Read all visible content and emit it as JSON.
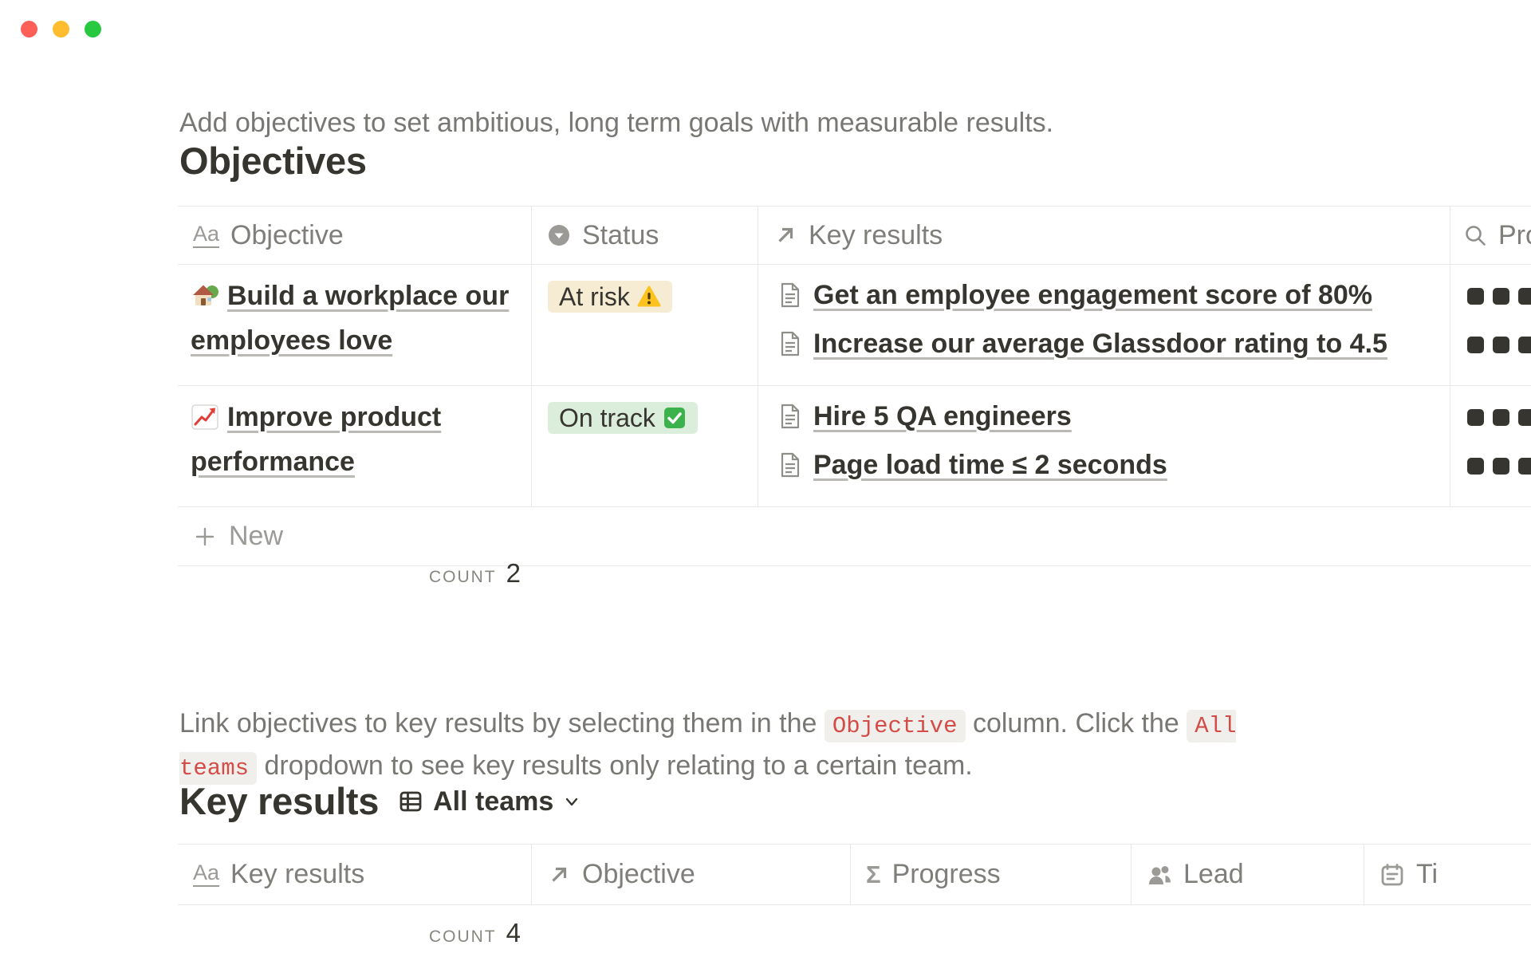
{
  "colors": {
    "traffic_red": "#fe5f57",
    "traffic_yellow": "#febc2e",
    "traffic_green": "#28c840",
    "at_risk_bg": "#f6ecd4",
    "on_track_bg": "#dbeddb",
    "code_text": "#d44c47",
    "text_dark": "#37352f",
    "text_gray": "#787774"
  },
  "icons": {
    "title_glyph": "Aa",
    "formula_glyph": "Σ"
  },
  "intro": "Add objectives to set ambitious, long term goals with measurable results.",
  "objectives_section": {
    "title": "Objectives",
    "table": {
      "columns": [
        {
          "icon": "title-icon",
          "label": "Objective"
        },
        {
          "icon": "select-icon",
          "label": "Status"
        },
        {
          "icon": "relation-icon",
          "label": "Key results"
        },
        {
          "icon": "rollup-search-icon",
          "label": "Pro"
        }
      ],
      "rows": [
        {
          "objective": {
            "emoji": "house-with-garden",
            "text": "Build a workplace our employees love"
          },
          "status": {
            "label": "At risk",
            "emoji": "warning",
            "bg": "#f6ecd4"
          },
          "key_results": [
            "Get an employee engagement score of 80%",
            "Increase our average Glassdoor rating to 4.5"
          ],
          "progress": [
            3,
            3
          ]
        },
        {
          "objective": {
            "emoji": "chart-increasing",
            "text": "Improve product performance"
          },
          "status": {
            "label": "On track",
            "emoji": "check-mark",
            "bg": "#dbeddb"
          },
          "key_results": [
            "Hire 5 QA engineers",
            "Page load time ≤ 2 seconds"
          ],
          "progress": [
            3,
            3
          ]
        }
      ],
      "new_row_label": "New",
      "aggregate": {
        "label": "COUNT",
        "value": "2"
      }
    }
  },
  "note": {
    "segments": [
      "Link objectives to key results by selecting them in the ",
      "Objective",
      " column. Click the ",
      "All teams",
      " dropdown to see key results only relating to a certain team."
    ]
  },
  "key_results_section": {
    "title": "Key results",
    "view_selector": {
      "label": "All teams"
    },
    "table": {
      "columns": [
        {
          "icon": "title-icon",
          "label": "Key results"
        },
        {
          "icon": "relation-icon",
          "label": "Objective"
        },
        {
          "icon": "formula-icon",
          "label": "Progress"
        },
        {
          "icon": "person-icon",
          "label": "Lead"
        },
        {
          "icon": "calendar-icon",
          "label": "Ti"
        }
      ],
      "aggregate": {
        "label": "COUNT",
        "value": "4"
      }
    }
  }
}
